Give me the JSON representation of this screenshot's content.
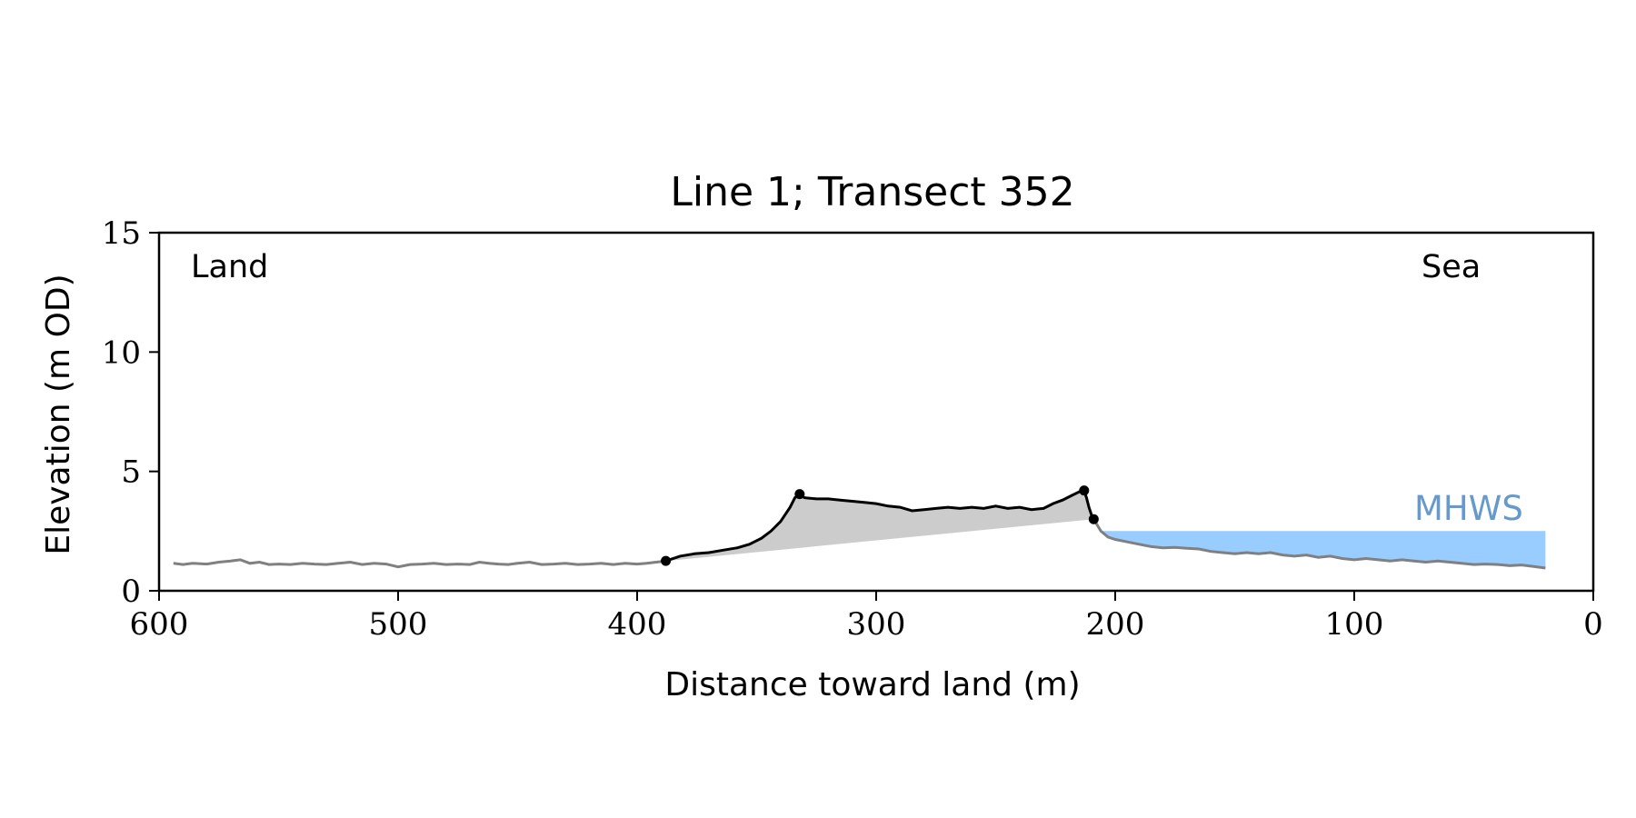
{
  "chart_data": {
    "type": "line",
    "title": "Line 1; Transect 352",
    "xlabel": "Distance toward land (m)",
    "ylabel": "Elevation (m OD)",
    "xlim": [
      600,
      0
    ],
    "ylim": [
      0,
      15
    ],
    "xticks": [
      600,
      500,
      400,
      300,
      200,
      100,
      0
    ],
    "yticks": [
      0,
      5,
      10,
      15
    ],
    "grid": false,
    "annotations": {
      "left": "Land",
      "right": "Sea",
      "mhws": "MHWS"
    },
    "mhws_level": 2.5,
    "colors": {
      "profile": "#808080",
      "dune": "#000000",
      "fill": "#cccccc",
      "water": "#99ccff",
      "mhws_text": "#6699cc"
    },
    "series": [
      {
        "values_note": "",
        "x": [
          594,
          590,
          586,
          580,
          575,
          570,
          566,
          562,
          558,
          554,
          550,
          545,
          540,
          535,
          530,
          525,
          520,
          515,
          510,
          505,
          500,
          495,
          490,
          485,
          480,
          475,
          470,
          466,
          462,
          458,
          454,
          450,
          445,
          440,
          435,
          430,
          425,
          420,
          415,
          410,
          405,
          400,
          396,
          392,
          388
        ],
        "y": [
          1.15,
          1.1,
          1.15,
          1.12,
          1.2,
          1.25,
          1.3,
          1.15,
          1.2,
          1.1,
          1.12,
          1.1,
          1.15,
          1.12,
          1.1,
          1.15,
          1.2,
          1.1,
          1.15,
          1.12,
          1.0,
          1.1,
          1.12,
          1.15,
          1.1,
          1.12,
          1.1,
          1.2,
          1.15,
          1.12,
          1.1,
          1.15,
          1.2,
          1.1,
          1.12,
          1.15,
          1.1,
          1.12,
          1.15,
          1.1,
          1.15,
          1.12,
          1.15,
          1.2,
          1.25
        ]
      },
      {
        "x": [
          388,
          382,
          376,
          370,
          364,
          358,
          353,
          348,
          344,
          340,
          336,
          334,
          332,
          330,
          325,
          320,
          315,
          310,
          305,
          300,
          295,
          290,
          285,
          280,
          275,
          270,
          265,
          260,
          255,
          250,
          245,
          240,
          235,
          230,
          226,
          222,
          218,
          215,
          213,
          212,
          211,
          210,
          209
        ],
        "y": [
          1.25,
          1.45,
          1.55,
          1.6,
          1.7,
          1.8,
          1.95,
          2.2,
          2.5,
          2.9,
          3.5,
          3.9,
          4.05,
          3.9,
          3.85,
          3.85,
          3.8,
          3.75,
          3.7,
          3.65,
          3.55,
          3.5,
          3.35,
          3.4,
          3.45,
          3.5,
          3.45,
          3.5,
          3.45,
          3.55,
          3.45,
          3.5,
          3.4,
          3.45,
          3.65,
          3.8,
          4.0,
          4.15,
          4.2,
          3.9,
          3.5,
          3.2,
          3.0
        ]
      },
      {
        "x": [
          209,
          206,
          203,
          200,
          195,
          190,
          185,
          180,
          175,
          170,
          165,
          160,
          155,
          150,
          145,
          140,
          135,
          130,
          125,
          120,
          115,
          110,
          105,
          100,
          95,
          90,
          85,
          80,
          75,
          70,
          65,
          60,
          55,
          50,
          45,
          40,
          35,
          30,
          25,
          20
        ],
        "y": [
          3.0,
          2.5,
          2.25,
          2.15,
          2.05,
          1.95,
          1.85,
          1.8,
          1.82,
          1.78,
          1.75,
          1.65,
          1.6,
          1.55,
          1.6,
          1.55,
          1.6,
          1.5,
          1.45,
          1.5,
          1.4,
          1.45,
          1.35,
          1.3,
          1.35,
          1.3,
          1.25,
          1.3,
          1.25,
          1.2,
          1.25,
          1.2,
          1.15,
          1.1,
          1.12,
          1.1,
          1.05,
          1.08,
          1.02,
          0.95
        ]
      }
    ],
    "markers": [
      {
        "x": 388,
        "y": 1.25
      },
      {
        "x": 332,
        "y": 4.05
      },
      {
        "x": 213,
        "y": 4.2
      },
      {
        "x": 209,
        "y": 3.0
      }
    ]
  }
}
